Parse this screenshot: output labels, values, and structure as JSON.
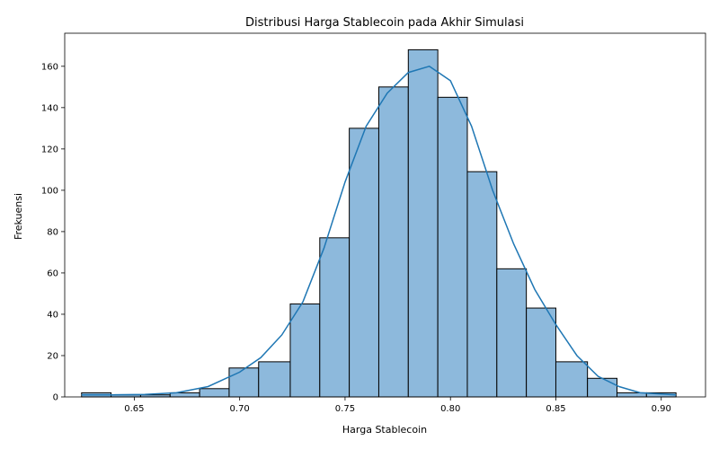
{
  "chart_data": {
    "type": "bar",
    "subtype": "histogram",
    "title": "Distribusi Harga Stablecoin pada Akhir Simulasi",
    "xlabel": "Harga Stablecoin",
    "ylabel": "Frekuensi",
    "xlim": [
      0.617,
      0.921
    ],
    "ylim": [
      0,
      176
    ],
    "xticks": [
      0.65,
      0.7,
      0.75,
      0.8,
      0.85,
      0.9
    ],
    "xtick_labels": [
      "0.65",
      "0.70",
      "0.75",
      "0.80",
      "0.85",
      "0.90"
    ],
    "yticks": [
      0,
      20,
      40,
      60,
      80,
      100,
      120,
      140,
      160
    ],
    "ytick_labels": [
      "0",
      "20",
      "40",
      "60",
      "80",
      "100",
      "120",
      "140",
      "160"
    ],
    "bins": [
      {
        "x0": 0.625,
        "x1": 0.639,
        "count": 2
      },
      {
        "x0": 0.639,
        "x1": 0.653,
        "count": 1
      },
      {
        "x0": 0.653,
        "x1": 0.667,
        "count": 1
      },
      {
        "x0": 0.667,
        "x1": 0.681,
        "count": 2
      },
      {
        "x0": 0.681,
        "x1": 0.695,
        "count": 4
      },
      {
        "x0": 0.695,
        "x1": 0.709,
        "count": 14
      },
      {
        "x0": 0.709,
        "x1": 0.724,
        "count": 17
      },
      {
        "x0": 0.724,
        "x1": 0.738,
        "count": 45
      },
      {
        "x0": 0.738,
        "x1": 0.752,
        "count": 77
      },
      {
        "x0": 0.752,
        "x1": 0.766,
        "count": 130
      },
      {
        "x0": 0.766,
        "x1": 0.78,
        "count": 150
      },
      {
        "x0": 0.78,
        "x1": 0.794,
        "count": 168
      },
      {
        "x0": 0.794,
        "x1": 0.808,
        "count": 145
      },
      {
        "x0": 0.808,
        "x1": 0.822,
        "count": 109
      },
      {
        "x0": 0.822,
        "x1": 0.836,
        "count": 62
      },
      {
        "x0": 0.836,
        "x1": 0.85,
        "count": 43
      },
      {
        "x0": 0.85,
        "x1": 0.865,
        "count": 17
      },
      {
        "x0": 0.865,
        "x1": 0.879,
        "count": 9
      },
      {
        "x0": 0.879,
        "x1": 0.893,
        "count": 2
      },
      {
        "x0": 0.893,
        "x1": 0.907,
        "count": 2
      }
    ],
    "kde": {
      "x": [
        0.625,
        0.64,
        0.655,
        0.67,
        0.685,
        0.7,
        0.71,
        0.72,
        0.73,
        0.74,
        0.75,
        0.76,
        0.77,
        0.78,
        0.79,
        0.8,
        0.81,
        0.82,
        0.83,
        0.84,
        0.85,
        0.86,
        0.87,
        0.88,
        0.89,
        0.907
      ],
      "y": [
        1,
        1,
        1.2,
        2,
        5,
        12,
        19,
        30,
        46,
        72,
        104,
        131,
        147,
        157,
        160,
        153,
        131,
        100,
        74,
        52,
        35,
        20,
        10,
        5,
        2,
        1
      ]
    },
    "grid": false,
    "legend": "none",
    "bar_fill": "#8db9dc",
    "bar_edge": "#000000",
    "line_color": "#1f77b4"
  }
}
